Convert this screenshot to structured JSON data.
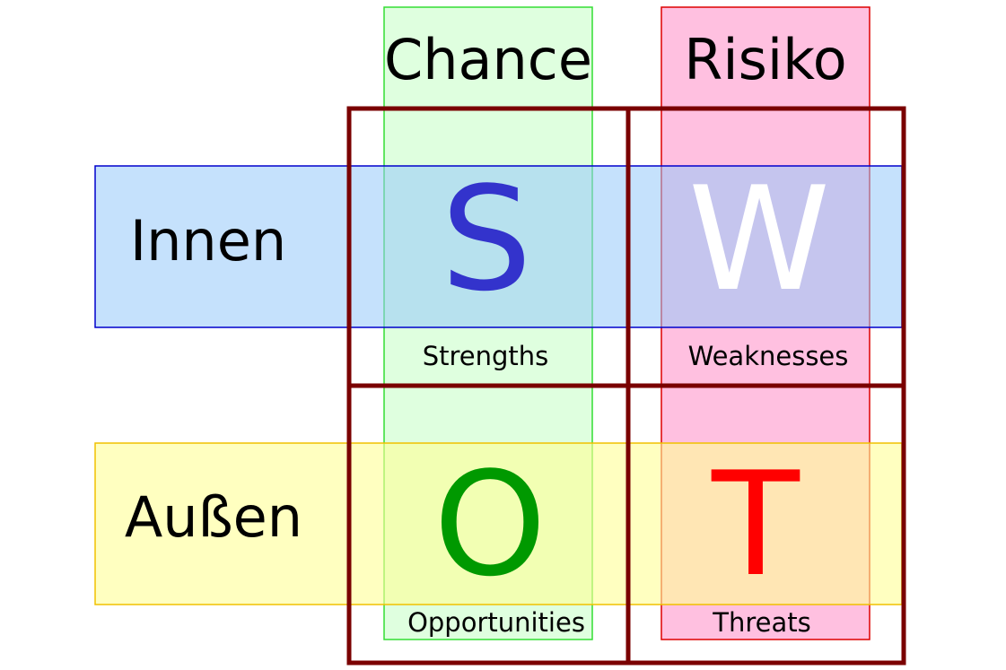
{
  "columns": {
    "chance": {
      "label": "Chance",
      "fill": "#dfffdf",
      "stroke": "#33dd33"
    },
    "risiko": {
      "label": "Risiko",
      "fill": "#ffc0e0",
      "stroke": "#dd0000"
    }
  },
  "rows": {
    "innen": {
      "label": "Innen",
      "fill": "#a8d4fb",
      "stroke": "#0000cc"
    },
    "aussen": {
      "label": "Außen",
      "fill": "#ffff99",
      "stroke": "#f0c000"
    }
  },
  "grid_color": "#7a0000",
  "cells": {
    "s": {
      "letter": "S",
      "word": "Strengths",
      "color": "#3333cc"
    },
    "w": {
      "letter": "W",
      "word": "Weaknesses",
      "color": "#ffffff"
    },
    "o": {
      "letter": "O",
      "word": "Opportunities",
      "color": "#009900"
    },
    "t": {
      "letter": "T",
      "word": "Threats",
      "color": "#ff0000"
    }
  }
}
